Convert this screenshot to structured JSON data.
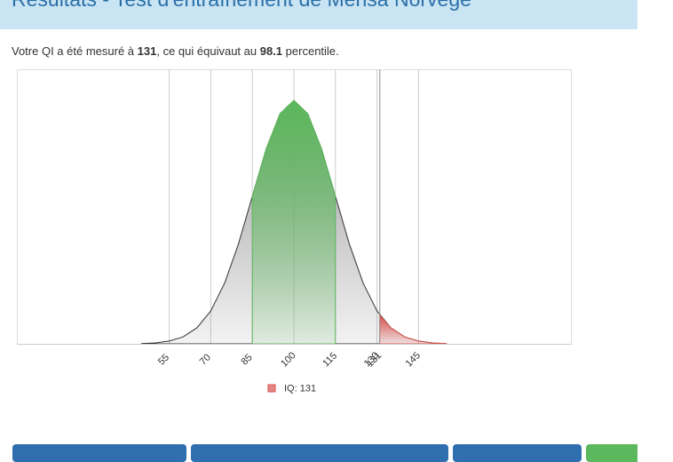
{
  "header": {
    "title": "Résultats - Test d'entraînement de Mensa Norvège"
  },
  "result": {
    "parts": [
      "Votre QI a été mesuré à",
      "131",
      ", ce qui équivaut au",
      "98.1",
      "percentile."
    ]
  },
  "chart_data": {
    "type": "area",
    "xlim": [
      0,
      200
    ],
    "ylim": [
      0,
      3
    ],
    "xticks": [
      55,
      70,
      85,
      100,
      115,
      130,
      131,
      145
    ],
    "grid": true,
    "legend": "bottom",
    "marker_x": 131,
    "series": [
      {
        "color": "#999999",
        "x": [
          45,
          50,
          55,
          60,
          65,
          70,
          75,
          80,
          85,
          90,
          95,
          100,
          105,
          110,
          115,
          120,
          125,
          130,
          135,
          140,
          145,
          150,
          155
        ],
        "values": [
          0.003,
          0.01,
          0.03,
          0.076,
          0.175,
          0.36,
          0.663,
          1.093,
          1.613,
          2.13,
          2.516,
          2.66,
          2.516,
          2.13,
          1.613,
          1.093,
          0.663,
          0.36,
          0.175,
          0.076,
          0.03,
          0.01,
          0.003
        ]
      },
      {
        "color": "#5cb85c",
        "x": [
          85,
          90,
          95,
          100,
          105,
          110,
          115
        ],
        "values": [
          1.613,
          2.13,
          2.516,
          2.66,
          2.516,
          2.13,
          1.613
        ]
      },
      {
        "name": "IQ: 131",
        "color": "#d9534f",
        "x": [
          131,
          135,
          140,
          145,
          150,
          155
        ],
        "values": [
          0.314,
          0.175,
          0.076,
          0.03,
          0.01,
          0.003
        ]
      }
    ]
  }
}
